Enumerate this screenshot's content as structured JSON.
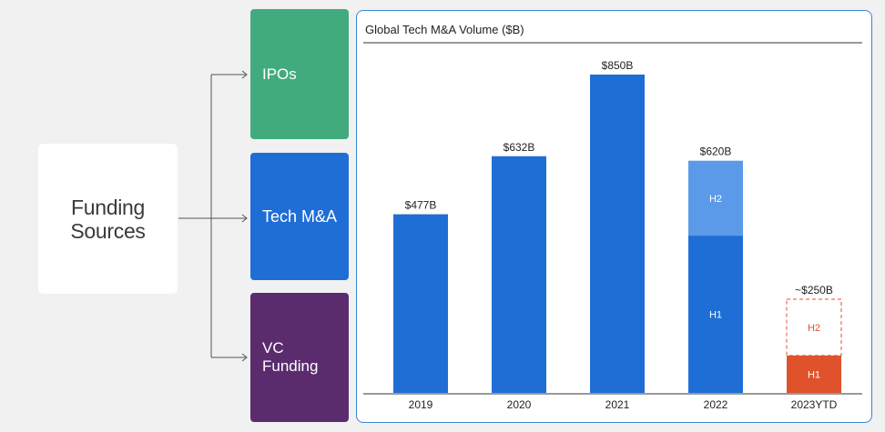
{
  "diagram": {
    "source": "Funding\nSources",
    "categories": {
      "ipos": "IPOs",
      "tech_ma": "Tech M&A",
      "vc_funding": "VC\nFunding"
    }
  },
  "colors": {
    "ipos": "#42ab7e",
    "tech_ma": "#1f6ed6",
    "vc": "#5a2c6e",
    "bar_primary": "#1f6ed6",
    "bar_h2_light": "#5b9ae8",
    "bar_2023": "#e0522b"
  },
  "chart_data": {
    "type": "bar",
    "title": "Global Tech M&A Volume ($B)",
    "categories": [
      "2019",
      "2020",
      "2021",
      "2022",
      "2023YTD"
    ],
    "values": [
      477,
      632,
      850,
      620,
      250
    ],
    "data_labels": [
      "$477B",
      "$632B",
      "$850B",
      "$620B",
      "~$250B"
    ],
    "segments": {
      "2022": [
        {
          "name": "H1",
          "value": 420
        },
        {
          "name": "H2",
          "value": 200
        }
      ],
      "2023YTD": [
        {
          "name": "H1",
          "value": 100
        },
        {
          "name": "H2",
          "value": 150,
          "projected": true
        }
      ]
    },
    "ylim": [
      0,
      1000
    ],
    "xlabel": "",
    "ylabel": ""
  }
}
